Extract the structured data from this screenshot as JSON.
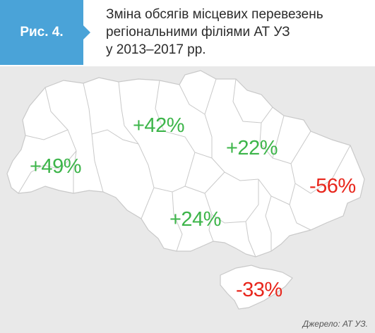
{
  "figure": {
    "label": "Рис. 4.",
    "title_lines": [
      "Зміна обсягів місцевих перевезень",
      "регіональними філіями АТ УЗ",
      "у 2013–2017 рр."
    ]
  },
  "colors": {
    "badge": "#4aa3d8",
    "panel": "#e9e9e9",
    "land": "#ffffff",
    "borders": "#c9c9c9",
    "positive": "#3db54a",
    "negative": "#e8261c"
  },
  "regions": [
    {
      "name": "lviv-branch",
      "value": "+49%",
      "sign": "positive"
    },
    {
      "name": "south-western-branch",
      "value": "+42%",
      "sign": "positive"
    },
    {
      "name": "southern-branch",
      "value": "+22%",
      "sign": "positive"
    },
    {
      "name": "donetsk-branch",
      "value": "-56%",
      "sign": "negative"
    },
    {
      "name": "odesa-branch",
      "value": "+24%",
      "sign": "positive"
    },
    {
      "name": "crimea",
      "value": "-33%",
      "sign": "negative"
    }
  ],
  "source": "Джерело: АТ УЗ."
}
